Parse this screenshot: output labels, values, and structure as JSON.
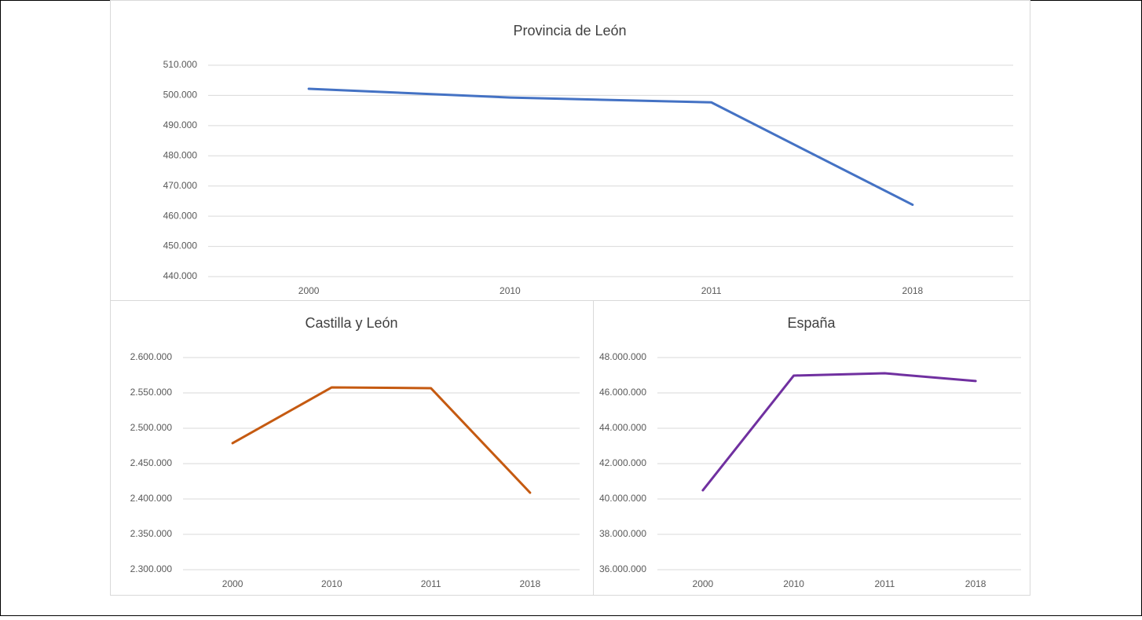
{
  "chart_data": [
    {
      "type": "line",
      "title": "Provincia de León",
      "categories": [
        "2000",
        "2010",
        "2011",
        "2018"
      ],
      "series": [
        {
          "color": "#4472c4",
          "values": [
            502200,
            499300,
            497700,
            463800
          ]
        }
      ],
      "ylim": [
        440000,
        510000
      ],
      "yticks": [
        {
          "value": 440000,
          "label": "440.000"
        },
        {
          "value": 450000,
          "label": "450.000"
        },
        {
          "value": 460000,
          "label": "460.000"
        },
        {
          "value": 470000,
          "label": "470.000"
        },
        {
          "value": 480000,
          "label": "480.000"
        },
        {
          "value": 490000,
          "label": "490.000"
        },
        {
          "value": 500000,
          "label": "500.000"
        },
        {
          "value": 510000,
          "label": "510.000"
        }
      ],
      "grid": true
    },
    {
      "type": "line",
      "title": "Castilla y León",
      "categories": [
        "2000",
        "2010",
        "2011",
        "2018"
      ],
      "series": [
        {
          "color": "#c55a11",
          "values": [
            2478900,
            2557800,
            2556700,
            2408900
          ]
        }
      ],
      "ylim": [
        2300000,
        2600000
      ],
      "yticks": [
        {
          "value": 2300000,
          "label": "2.300.000"
        },
        {
          "value": 2350000,
          "label": "2.350.000"
        },
        {
          "value": 2400000,
          "label": "2.400.000"
        },
        {
          "value": 2450000,
          "label": "2.450.000"
        },
        {
          "value": 2500000,
          "label": "2.500.000"
        },
        {
          "value": 2550000,
          "label": "2.550.000"
        },
        {
          "value": 2600000,
          "label": "2.600.000"
        }
      ],
      "grid": true
    },
    {
      "type": "line",
      "title": "España",
      "categories": [
        "2000",
        "2010",
        "2011",
        "2018"
      ],
      "series": [
        {
          "color": "#7030a0",
          "values": [
            40490000,
            46980000,
            47110000,
            46670000
          ]
        }
      ],
      "ylim": [
        36000000,
        48000000
      ],
      "yticks": [
        {
          "value": 36000000,
          "label": "36.000.000"
        },
        {
          "value": 38000000,
          "label": "38.000.000"
        },
        {
          "value": 40000000,
          "label": "40.000.000"
        },
        {
          "value": 42000000,
          "label": "42.000.000"
        },
        {
          "value": 44000000,
          "label": "44.000.000"
        },
        {
          "value": 46000000,
          "label": "46.000.000"
        },
        {
          "value": 48000000,
          "label": "48.000.000"
        }
      ],
      "grid": true
    }
  ]
}
